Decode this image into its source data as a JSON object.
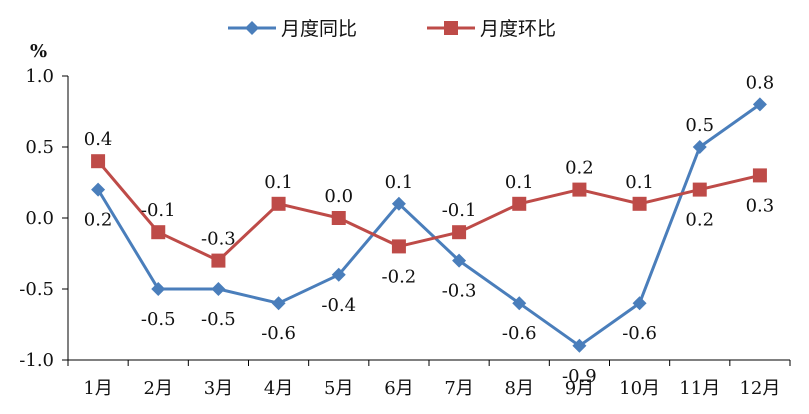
{
  "chart_data": {
    "type": "line",
    "unit_label": "%",
    "categories": [
      "1月",
      "2月",
      "3月",
      "4月",
      "5月",
      "6月",
      "7月",
      "8月",
      "9月",
      "10月",
      "11月",
      "12月"
    ],
    "ylim": [
      -1.0,
      1.0
    ],
    "yticks": [
      "1.0",
      "0.5",
      "0.0",
      "-0.5",
      "-1.0"
    ],
    "ytick_values": [
      1.0,
      0.5,
      0.0,
      -0.5,
      -1.0
    ],
    "grid": false,
    "legend_position": "top-center",
    "series": [
      {
        "name": "月度同比",
        "color": "#4a7ebb",
        "marker": "diamond",
        "values": [
          0.2,
          -0.5,
          -0.5,
          -0.6,
          -0.4,
          0.1,
          -0.3,
          -0.6,
          -0.9,
          -0.6,
          0.5,
          0.8
        ],
        "labels": [
          "0.2",
          "-0.5",
          "-0.5",
          "-0.6",
          "-0.4",
          "0.1",
          "-0.3",
          "-0.6",
          "-0.9",
          "-0.6",
          "0.5",
          "0.8"
        ]
      },
      {
        "name": "月度环比",
        "color": "#be4b48",
        "marker": "square",
        "values": [
          0.4,
          -0.1,
          -0.3,
          0.1,
          0.0,
          -0.2,
          -0.1,
          0.1,
          0.2,
          0.1,
          0.2,
          0.3
        ],
        "labels": [
          "0.4",
          "-0.1",
          "-0.3",
          "0.1",
          "0.0",
          "-0.2",
          "-0.1",
          "0.1",
          "0.2",
          "0.1",
          "0.2",
          "0.3"
        ]
      }
    ]
  }
}
